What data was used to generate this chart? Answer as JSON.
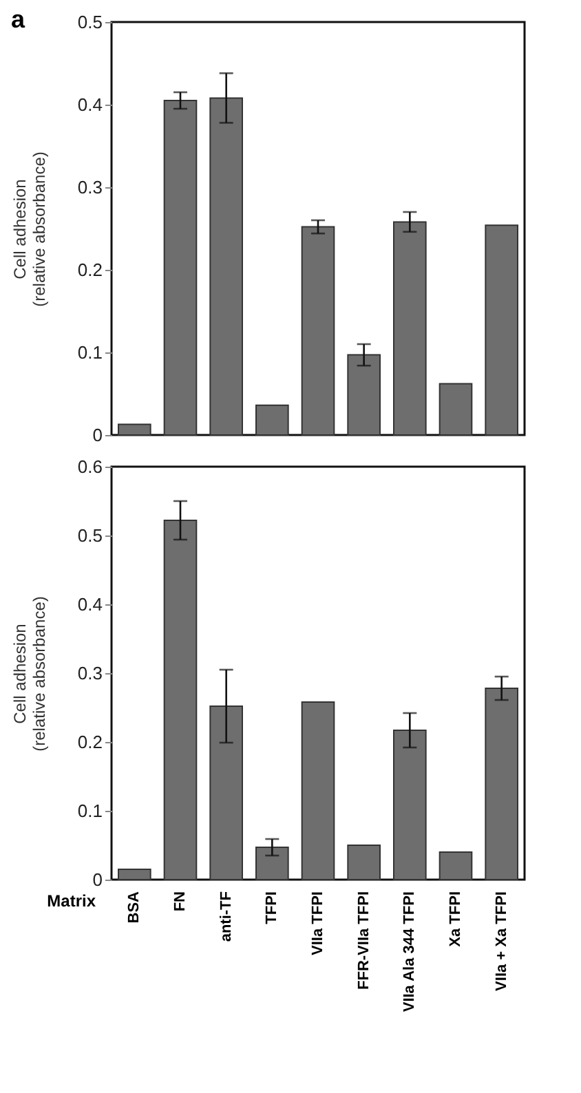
{
  "chart_data": [
    {
      "type": "bar",
      "title": "a",
      "categories": [
        null,
        null,
        null,
        null,
        null,
        null,
        null,
        null,
        null
      ],
      "values": [
        0.013,
        0.405,
        0.408,
        0.036,
        0.252,
        0.097,
        0.258,
        0.062,
        0.254
      ],
      "errors": [
        null,
        0.01,
        0.03,
        null,
        0.008,
        0.013,
        0.012,
        null,
        null
      ],
      "color": "#6e6e6e",
      "ylabel": "Cell adhesion\n(relative absorbance)",
      "ylim": [
        0,
        0.5
      ],
      "yticks": [
        0,
        0.1,
        0.2,
        0.3,
        0.4,
        0.5
      ],
      "tick_labels": "y"
    },
    {
      "type": "bar",
      "categories": [
        "BSA",
        "FN",
        "anti-TF",
        "TFPI",
        "VIIa TFPI",
        "FFR-VIIa TFPI",
        "VIIa Ala 344 TFPI",
        "Xa TFPI",
        "VIIa + Xa TFPI"
      ],
      "values": [
        0.015,
        0.522,
        0.252,
        0.047,
        0.258,
        0.05,
        0.217,
        0.04,
        0.278
      ],
      "errors": [
        null,
        0.028,
        0.053,
        0.012,
        null,
        null,
        0.025,
        null,
        0.017
      ],
      "color": "#6e6e6e",
      "xlabel": "Matrix",
      "ylabel": "Cell adhesion\n(relative absorbance)",
      "ylim": [
        0,
        0.6
      ],
      "yticks": [
        0,
        0.1,
        0.2,
        0.3,
        0.4,
        0.5,
        0.6
      ]
    }
  ]
}
